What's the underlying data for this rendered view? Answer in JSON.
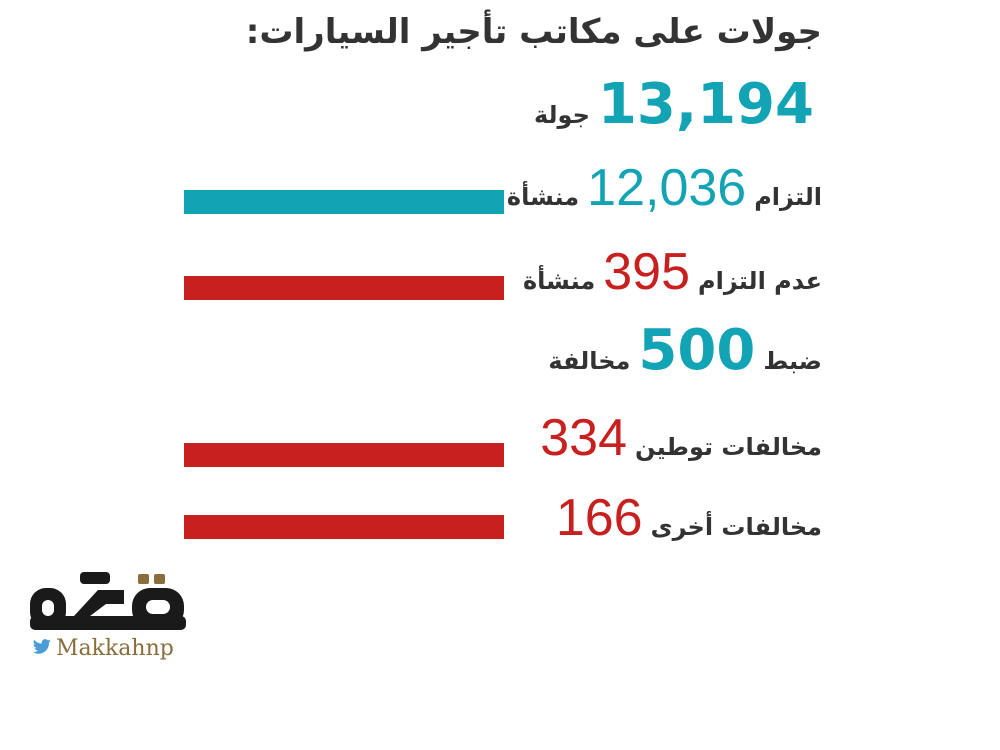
{
  "title": "جولات على مكاتب تأجير السيارات:",
  "total": {
    "value": "13,194",
    "unit": "جولة"
  },
  "rows": [
    {
      "prefix": "التزام",
      "value": "12,036",
      "suffix": "منشأة"
    },
    {
      "prefix": "عدم التزام",
      "value": "395",
      "suffix": "منشأة"
    },
    {
      "prefix": "ضبط",
      "value": "500",
      "suffix": "مخالفة"
    },
    {
      "prefix": "مخالفات توطين",
      "value": "334"
    },
    {
      "prefix": "مخالفات أخرى",
      "value": "166"
    }
  ],
  "colors": {
    "teal": "#12a3b5",
    "red": "#c8201e",
    "text": "#333333",
    "logo": "#1a1a1a",
    "handle": "#8a6d3b"
  },
  "logo": {
    "text": "مكة",
    "handle": "Makkahnp",
    "icon": "twitter-bird-icon"
  },
  "chart_data": {
    "type": "bar",
    "orientation": "horizontal",
    "categories": [
      "التزام",
      "عدم التزام",
      "مخالفات توطين",
      "مخالفات أخرى"
    ],
    "values": [
      12036,
      395,
      334,
      166
    ],
    "colors": [
      "#12a3b5",
      "#c8201e",
      "#c8201e",
      "#c8201e"
    ],
    "title": "جولات على مكاتب تأجير السيارات:"
  }
}
